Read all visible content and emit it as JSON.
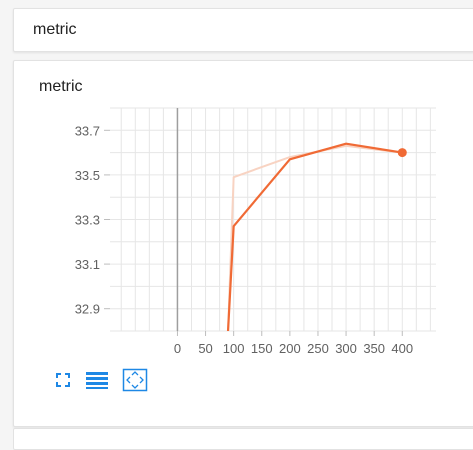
{
  "header": {
    "title": "metric"
  },
  "card": {
    "title": "metric"
  },
  "chart_data": {
    "type": "line",
    "title": "metric",
    "xlabel": "",
    "ylabel": "",
    "xlim": [
      -120,
      460
    ],
    "ylim": [
      32.8,
      33.8
    ],
    "x_ticks": [
      0,
      50,
      100,
      150,
      200,
      250,
      300,
      350,
      400
    ],
    "y_ticks": [
      32.9,
      33.1,
      33.3,
      33.5,
      33.7
    ],
    "grid": true,
    "series": [
      {
        "x": [
          90,
          100,
          200,
          300,
          400
        ],
        "y": [
          32.8,
          33.27,
          33.57,
          33.64,
          33.6
        ],
        "color": "#f06a35",
        "role": "smoothed"
      },
      {
        "x": [
          90,
          100,
          200,
          300,
          400
        ],
        "y": [
          32.8,
          33.49,
          33.58,
          33.63,
          33.6
        ],
        "color": "#f8d3c2",
        "role": "raw"
      }
    ],
    "highlight_point": {
      "x": 400,
      "y": 33.6
    }
  },
  "toolbar": {
    "icons": [
      "fullscreen-icon",
      "data-table-icon",
      "fit-domain-icon"
    ],
    "accent": "#1e88e5"
  }
}
